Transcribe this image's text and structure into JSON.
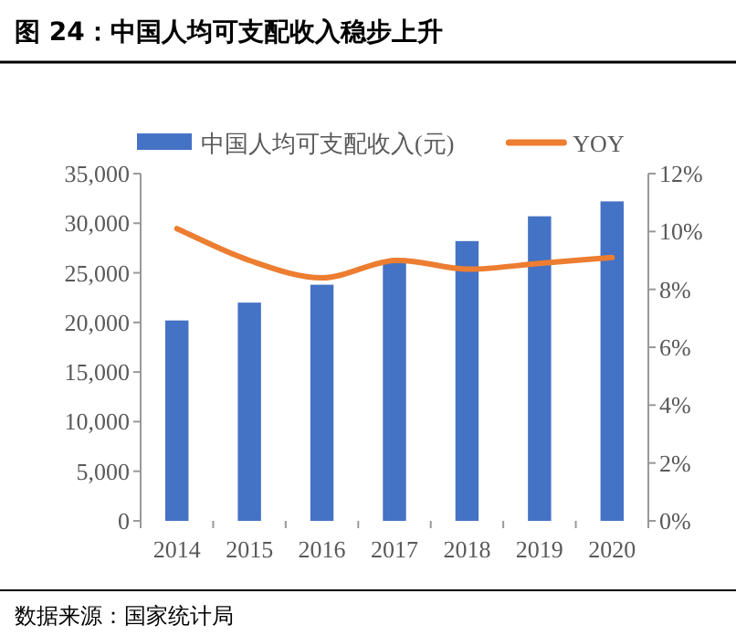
{
  "chart_data": {
    "type": "bar",
    "title": "图 24：中国人均可支配收入稳步上升",
    "categories": [
      "2014",
      "2015",
      "2016",
      "2017",
      "2018",
      "2019",
      "2020"
    ],
    "series": [
      {
        "name": "中国人均可支配收入(元)",
        "color": "#4472c4",
        "values": [
          20200,
          22000,
          23800,
          26000,
          28200,
          30700,
          32200
        ]
      },
      {
        "name": "YOY",
        "type": "line",
        "axis": "y2",
        "color": "#ed7d31",
        "values": [
          10.1,
          9.0,
          8.4,
          9.0,
          8.7,
          8.9,
          9.1
        ]
      }
    ],
    "ylim": [
      0,
      35000
    ],
    "yticks": [
      {
        "value": 0,
        "label": "0"
      },
      {
        "value": 5000,
        "label": "5,000"
      },
      {
        "value": 10000,
        "label": "10,000"
      },
      {
        "value": 15000,
        "label": "15,000"
      },
      {
        "value": 20000,
        "label": "20,000"
      },
      {
        "value": 25000,
        "label": "25,000"
      },
      {
        "value": 30000,
        "label": "30,000"
      },
      {
        "value": 35000,
        "label": "35,000"
      }
    ],
    "y2lim": [
      0,
      12
    ],
    "y2ticks": [
      {
        "value": 0,
        "label": "0%"
      },
      {
        "value": 2,
        "label": "2%"
      },
      {
        "value": 4,
        "label": "4%"
      },
      {
        "value": 6,
        "label": "6%"
      },
      {
        "value": 8,
        "label": "8%"
      },
      {
        "value": 10,
        "label": "10%"
      },
      {
        "value": 12,
        "label": "12%"
      }
    ],
    "legend": "top",
    "annotations": [
      "数据来源：国家统计局"
    ]
  }
}
